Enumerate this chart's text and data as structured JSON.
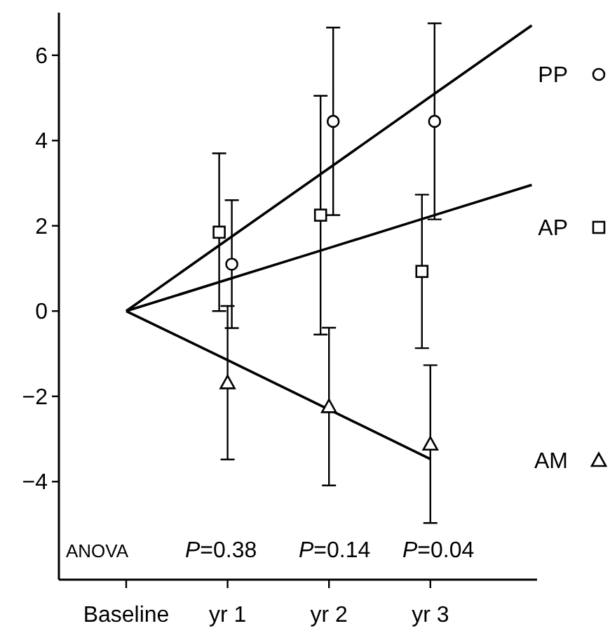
{
  "chart_data": {
    "type": "scatter",
    "categories": [
      "Baseline",
      "yr 1",
      "yr 2",
      "yr 3",
      null
    ],
    "ylim": [
      -6.3,
      7
    ],
    "yticks": [
      -4,
      -2,
      0,
      2,
      4,
      6
    ],
    "grid": false,
    "legend": "right",
    "annotations": [
      "ANOVA",
      "P=0.38",
      "P=0.14",
      "P=0.04"
    ],
    "series": [
      {
        "name": "PP",
        "marker": "circle",
        "color": "#000000",
        "values": [
          null,
          1.1,
          4.45,
          4.45,
          null
        ],
        "errors": [
          null,
          1.5,
          2.2,
          2.3,
          null
        ]
      },
      {
        "name": "AP",
        "marker": "square",
        "color": "#000000",
        "values": [
          null,
          1.85,
          2.25,
          0.93,
          null
        ],
        "errors": [
          null,
          1.85,
          2.8,
          1.8,
          null
        ]
      },
      {
        "name": "AM",
        "marker": "triangle",
        "color": "#000000",
        "values": [
          null,
          -1.68,
          -2.24,
          -3.12,
          null
        ],
        "errors": [
          null,
          1.8,
          1.85,
          1.85,
          null
        ]
      },
      {
        "type": "line",
        "color": "#000000",
        "values": [
          0,
          1.68,
          3.35,
          5.03,
          6.7
        ]
      },
      {
        "type": "line",
        "color": "#000000",
        "values": [
          0,
          0.74,
          1.48,
          2.22,
          2.96
        ]
      },
      {
        "type": "line",
        "color": "#000000",
        "values": [
          0,
          -1.15,
          -2.31,
          -3.47,
          null
        ]
      }
    ]
  }
}
